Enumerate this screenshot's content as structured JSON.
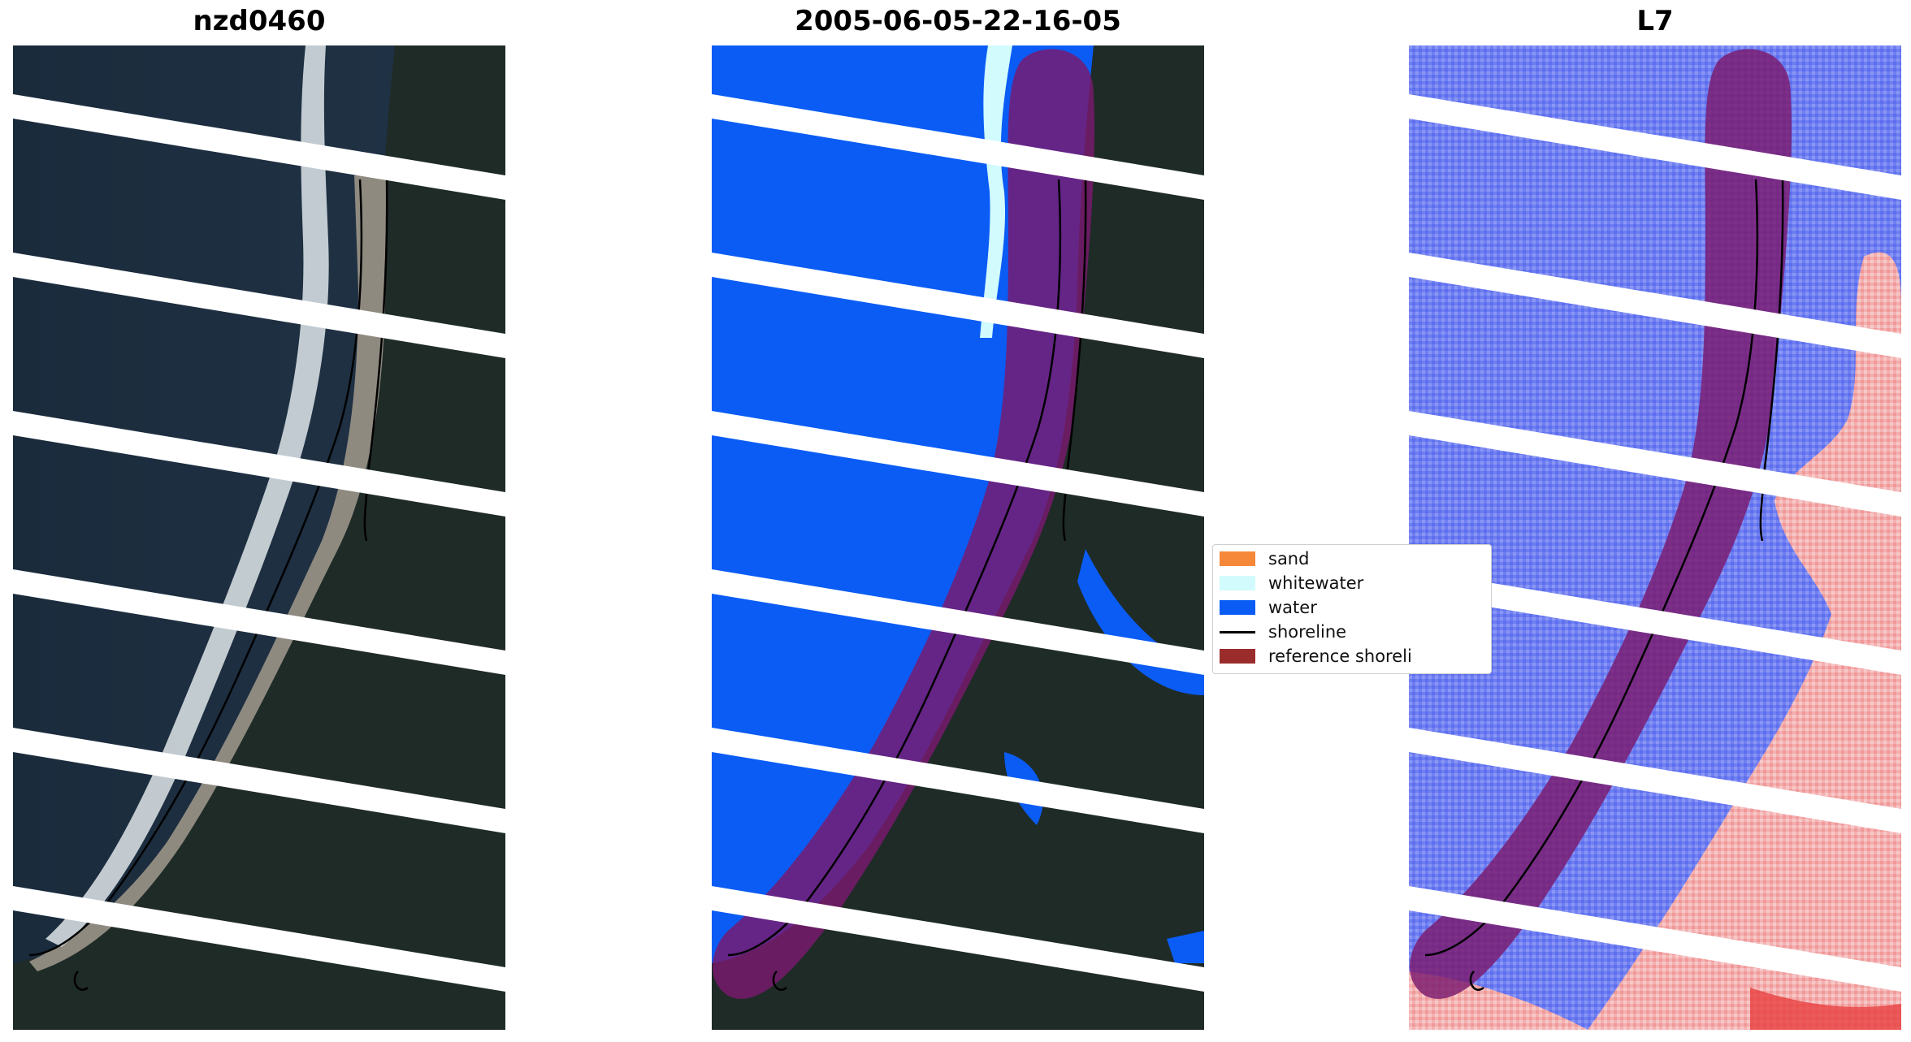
{
  "panels": [
    {
      "title": "nzd0460",
      "view": "rgb"
    },
    {
      "title": "2005-06-05-22-16-05",
      "view": "classified"
    },
    {
      "title": "L7",
      "view": "index"
    }
  ],
  "legend": {
    "items": [
      {
        "label": "sand",
        "color": "#f6883a",
        "kind": "patch"
      },
      {
        "label": "whitewater",
        "color": "#d2fbfd",
        "kind": "patch"
      },
      {
        "label": "water",
        "color": "#0a5cf5",
        "kind": "patch"
      },
      {
        "label": "shoreline",
        "color": "#000000",
        "kind": "line"
      },
      {
        "label": "reference shoreli",
        "color": "#9a2c2c",
        "kind": "patch"
      }
    ]
  },
  "colors": {
    "water_dark": "#1d2d3d",
    "land_dark": "#1f2b27",
    "sand": "#9a9488",
    "surf": "#e8eef2",
    "classified_water": "#0a5cf5",
    "reference_band": "#7a1a6e",
    "index_water": "#6c7cf0",
    "index_land": "#f4a8a8"
  }
}
